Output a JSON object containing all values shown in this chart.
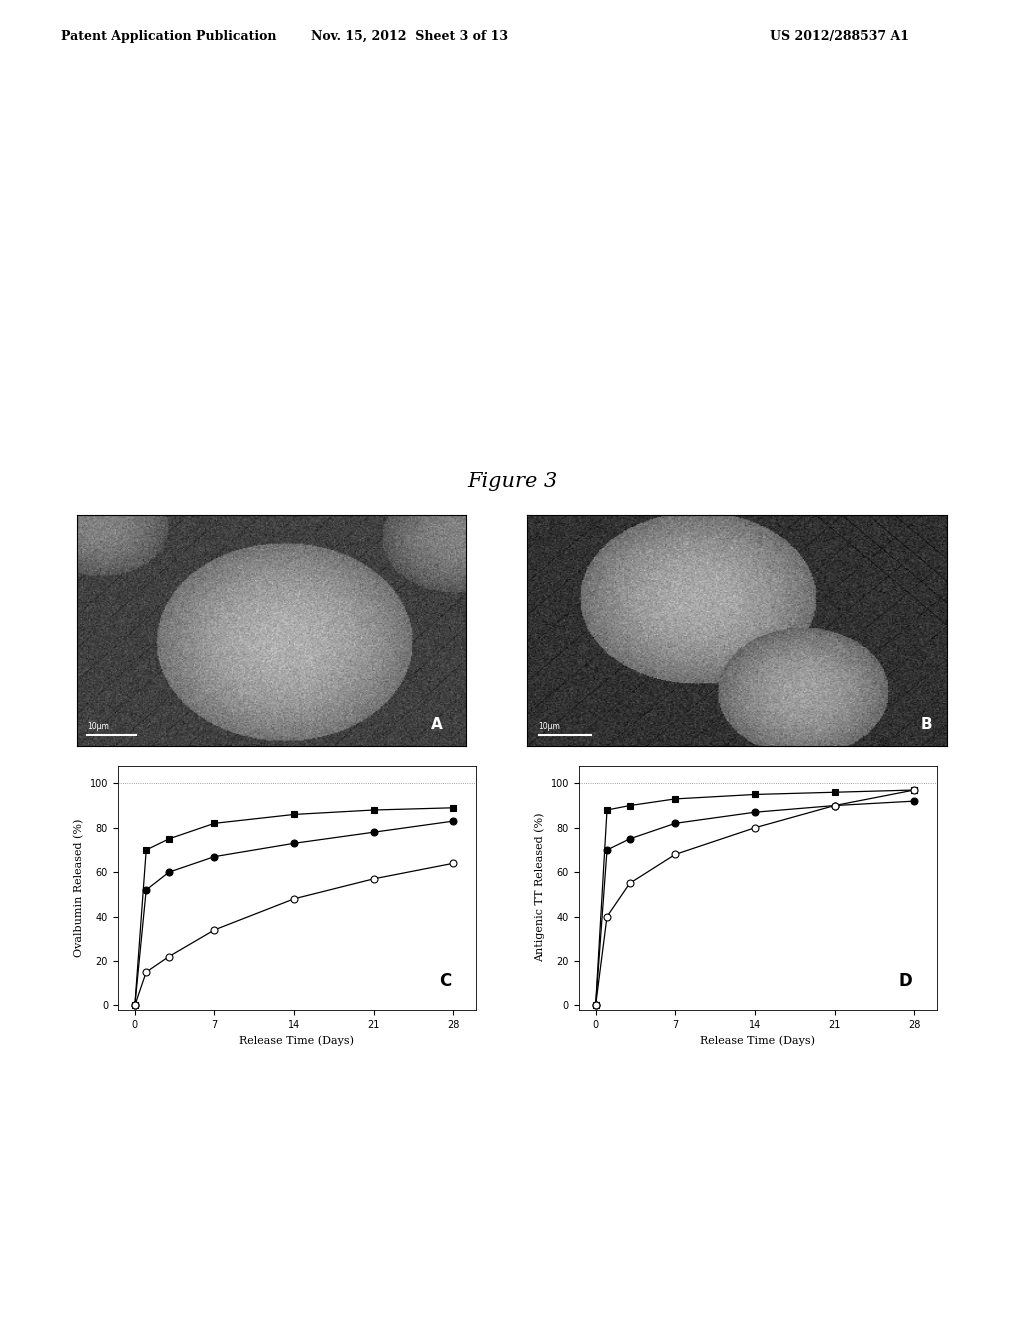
{
  "header_left": "Patent Application Publication",
  "header_mid": "Nov. 15, 2012  Sheet 3 of 13",
  "header_right": "US 2012/288537 A1",
  "figure_title": "Figure 3",
  "graph_C": {
    "ylabel": "Ovalbumin Released (%)",
    "xlabel": "Release Time (Days)",
    "panel_label": "C",
    "xticks": [
      0,
      7,
      14,
      21,
      28
    ],
    "yticks": [
      0,
      20,
      40,
      60,
      80,
      100
    ],
    "ylim": [
      -2,
      108
    ],
    "xlim": [
      -1.5,
      30
    ],
    "series": [
      {
        "x": [
          0,
          1,
          3,
          7,
          14,
          21,
          28
        ],
        "y": [
          0,
          70,
          75,
          82,
          86,
          88,
          89
        ],
        "marker": "s",
        "marker_fill": "black",
        "linestyle": "-",
        "color": "black",
        "markersize": 5
      },
      {
        "x": [
          0,
          1,
          3,
          7,
          14,
          21,
          28
        ],
        "y": [
          0,
          52,
          60,
          67,
          73,
          78,
          83
        ],
        "marker": "o",
        "marker_fill": "black",
        "linestyle": "-",
        "color": "black",
        "markersize": 5
      },
      {
        "x": [
          0,
          1,
          3,
          7,
          14,
          21,
          28
        ],
        "y": [
          0,
          15,
          22,
          34,
          48,
          57,
          64
        ],
        "marker": "o",
        "marker_fill": "white",
        "linestyle": "-",
        "color": "black",
        "markersize": 5
      }
    ]
  },
  "graph_D": {
    "ylabel": "Antigenic TT Released (%)",
    "xlabel": "Release Time (Days)",
    "panel_label": "D",
    "xticks": [
      0,
      7,
      14,
      21,
      28
    ],
    "yticks": [
      0,
      20,
      40,
      60,
      80,
      100
    ],
    "ylim": [
      -2,
      108
    ],
    "xlim": [
      -1.5,
      30
    ],
    "series": [
      {
        "x": [
          0,
          1,
          3,
          7,
          14,
          21,
          28
        ],
        "y": [
          0,
          88,
          90,
          93,
          95,
          96,
          97
        ],
        "marker": "s",
        "marker_fill": "black",
        "linestyle": "-",
        "color": "black",
        "markersize": 5
      },
      {
        "x": [
          0,
          1,
          3,
          7,
          14,
          21,
          28
        ],
        "y": [
          0,
          70,
          75,
          82,
          87,
          90,
          92
        ],
        "marker": "o",
        "marker_fill": "black",
        "linestyle": "-",
        "color": "black",
        "markersize": 5
      },
      {
        "x": [
          0,
          1,
          3,
          7,
          14,
          21,
          28
        ],
        "y": [
          0,
          40,
          55,
          68,
          80,
          90,
          97
        ],
        "marker": "o",
        "marker_fill": "white",
        "linestyle": "-",
        "color": "black",
        "markersize": 5
      }
    ]
  },
  "bg_color": "#ffffff",
  "font_size_header": 9,
  "font_size_title": 15,
  "font_size_axis_label": 8,
  "font_size_tick": 7,
  "font_size_panel": 12,
  "img_A_bg": 75,
  "img_B_bg": 55,
  "page_bg": "#e8e8e8"
}
